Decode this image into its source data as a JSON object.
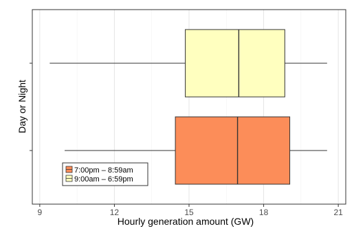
{
  "chart_data": {
    "type": "boxplot",
    "orientation": "horizontal",
    "title": "",
    "xlabel": "Hourly generation amount (GW)",
    "ylabel": "Day or Night",
    "xlim": [
      8.7,
      21.3
    ],
    "x_ticks": [
      9,
      12,
      15,
      18,
      21
    ],
    "grid": true,
    "legend_position": "bottom-left",
    "series": [
      {
        "name": "7:00pm – 8:59am",
        "color": "#fc8d59",
        "whisker_low": 10.0,
        "q1": 14.45,
        "median": 16.95,
        "q3": 19.05,
        "whisker_high": 20.55
      },
      {
        "name": "9:00am – 6:59pm",
        "color": "#ffffbf",
        "whisker_low": 9.4,
        "q1": 14.85,
        "median": 17.0,
        "q3": 18.85,
        "whisker_high": 20.55
      }
    ]
  }
}
